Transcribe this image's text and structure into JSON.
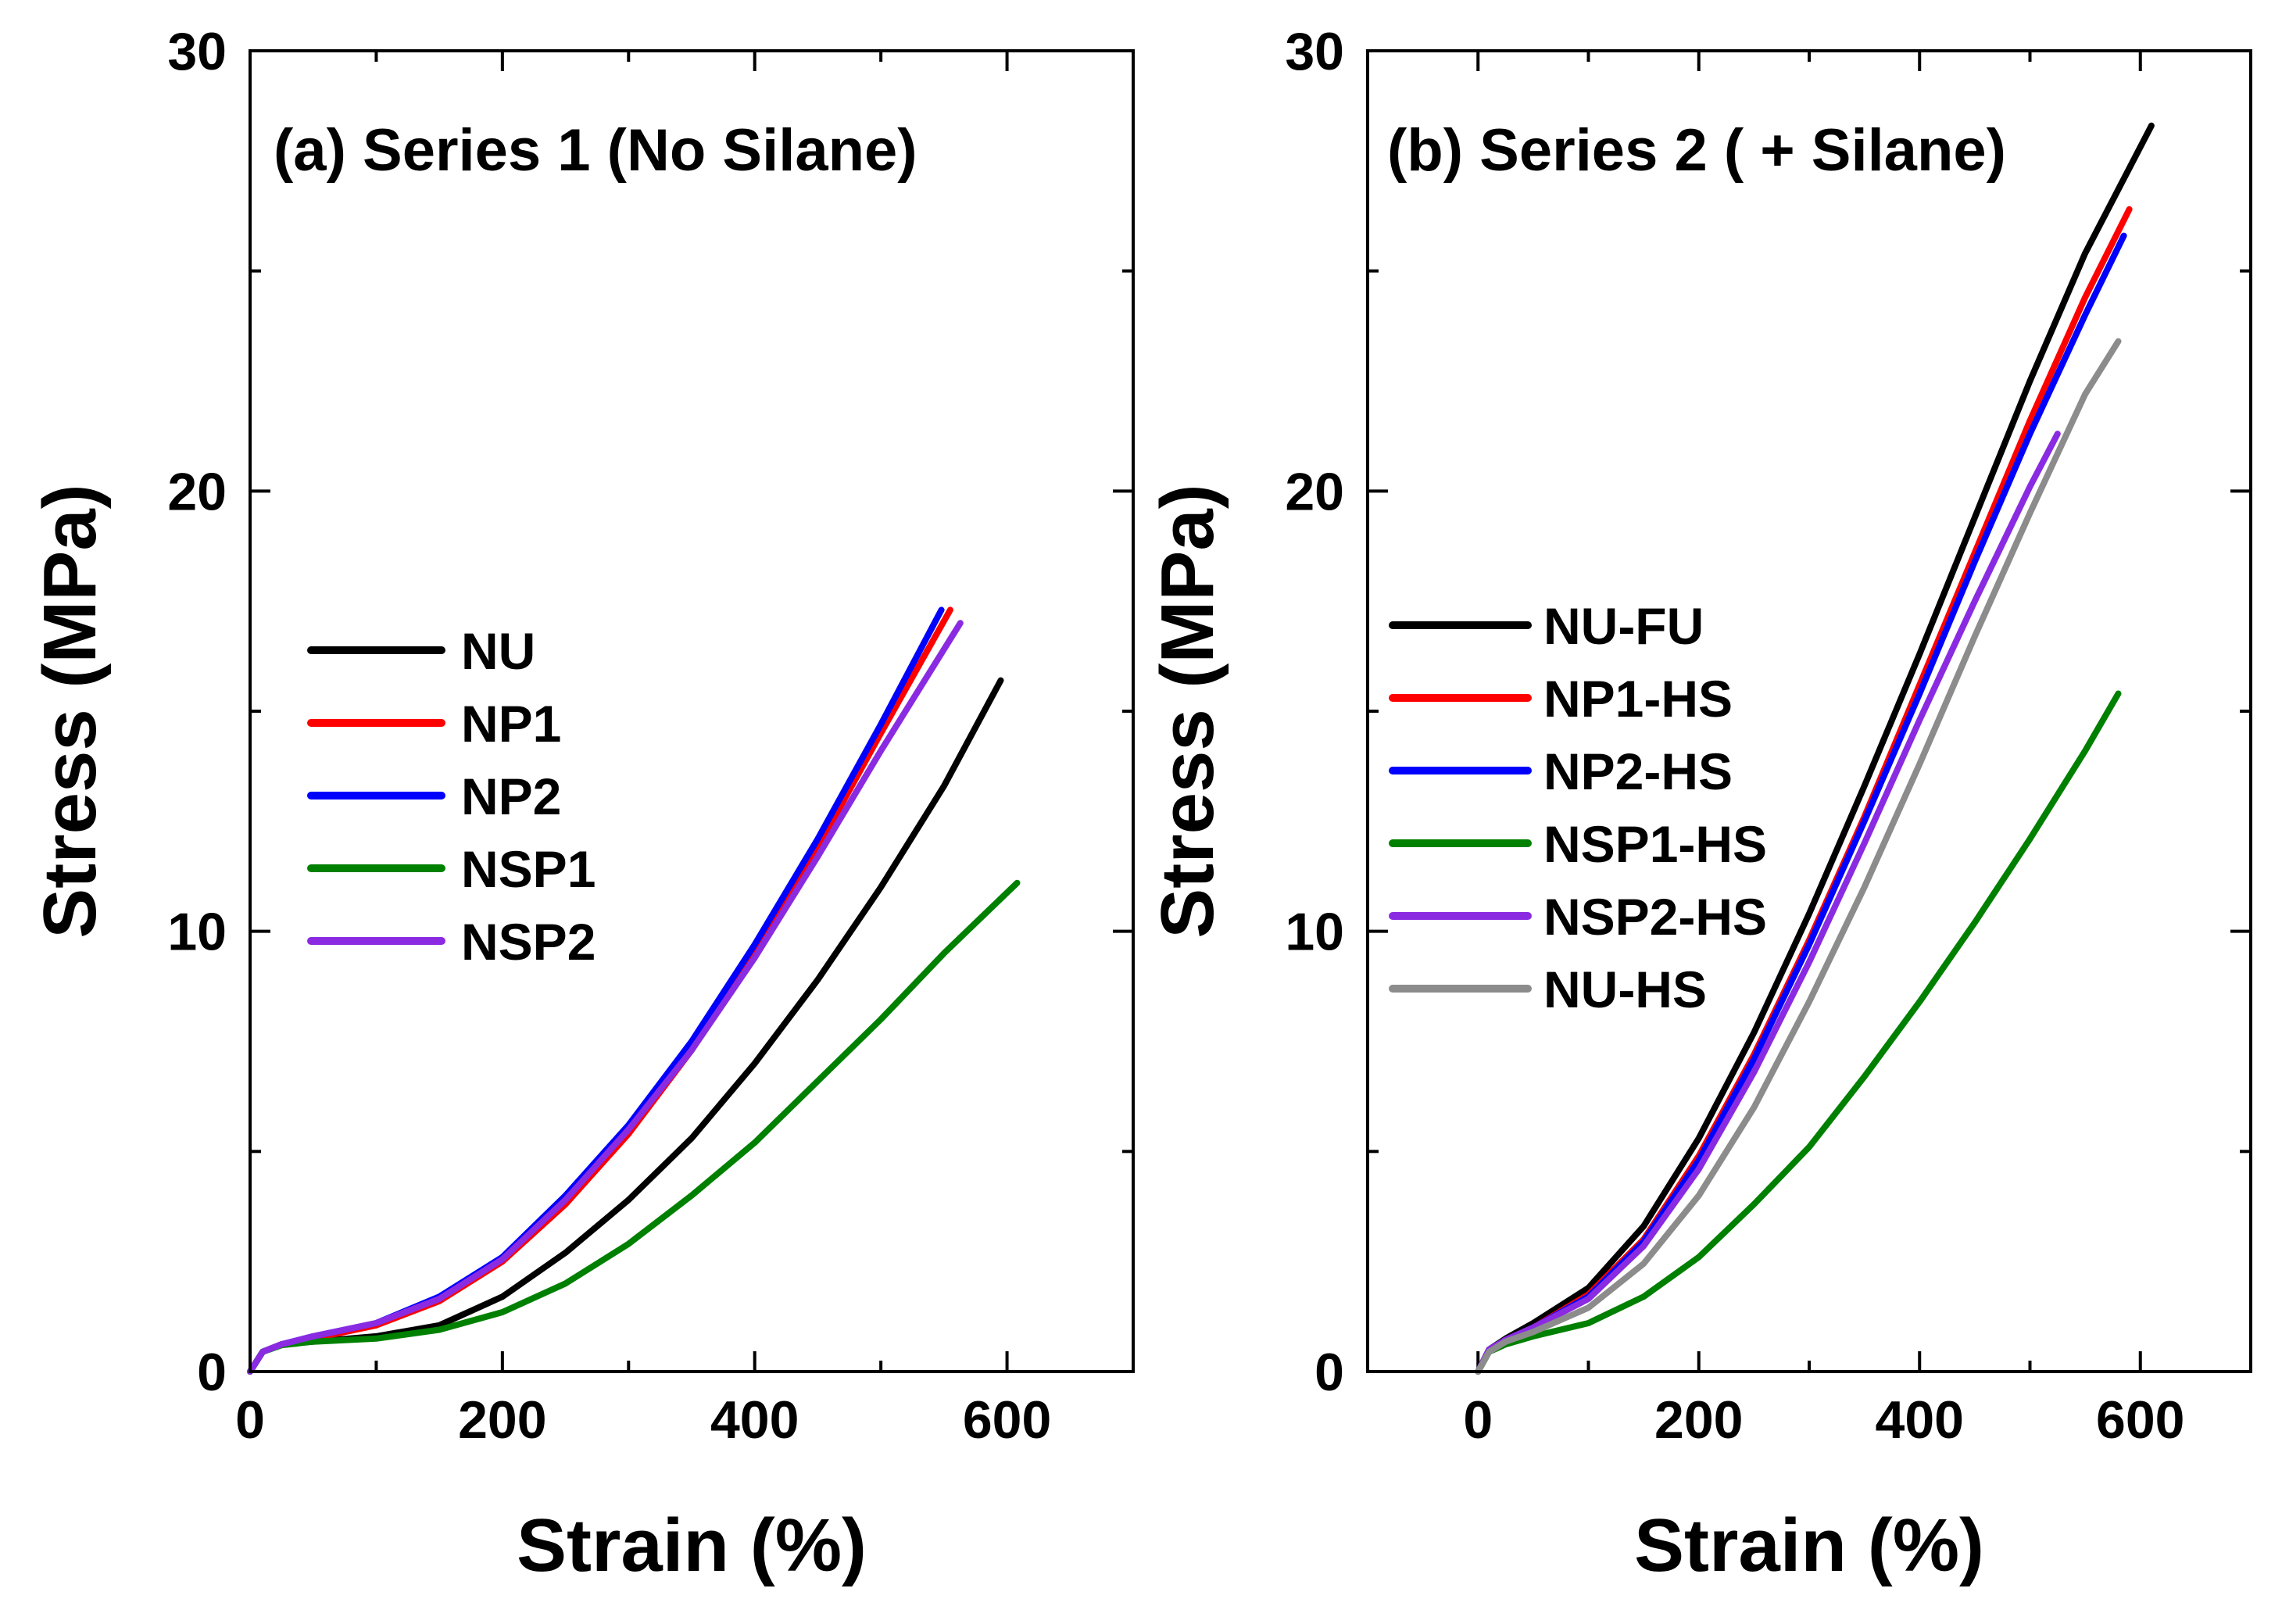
{
  "chart_data": [
    {
      "type": "line",
      "title": "(a) Series 1 (No Silane)",
      "xlabel": "Strain (%)",
      "ylabel": "Stress (MPa)",
      "xlim": [
        0,
        700
      ],
      "ylim": [
        0,
        30
      ],
      "xticks": [
        0,
        200,
        400,
        600
      ],
      "xtick_labels": [
        "0",
        "200",
        "400",
        "600"
      ],
      "yticks": [
        0,
        10,
        20,
        30
      ],
      "ytick_labels": [
        "0",
        "10",
        "20",
        "30"
      ],
      "legend_position": "middle-left",
      "series": [
        {
          "name": "NU",
          "color": "#000000",
          "points": [
            [
              0,
              0
            ],
            [
              10,
              0.45
            ],
            [
              25,
              0.62
            ],
            [
              50,
              0.68
            ],
            [
              100,
              0.8
            ],
            [
              150,
              1.05
            ],
            [
              200,
              1.7
            ],
            [
              250,
              2.7
            ],
            [
              300,
              3.9
            ],
            [
              350,
              5.3
            ],
            [
              400,
              7.0
            ],
            [
              450,
              8.9
            ],
            [
              500,
              11.0
            ],
            [
              550,
              13.3
            ],
            [
              595,
              15.7
            ]
          ]
        },
        {
          "name": "NP1",
          "color": "#ff0000",
          "points": [
            [
              0,
              0
            ],
            [
              10,
              0.45
            ],
            [
              25,
              0.62
            ],
            [
              50,
              0.75
            ],
            [
              100,
              1.05
            ],
            [
              150,
              1.6
            ],
            [
              200,
              2.5
            ],
            [
              250,
              3.8
            ],
            [
              300,
              5.4
            ],
            [
              350,
              7.3
            ],
            [
              400,
              9.5
            ],
            [
              450,
              11.9
            ],
            [
              500,
              14.5
            ],
            [
              555,
              17.3
            ]
          ]
        },
        {
          "name": "NP2",
          "color": "#0000ff",
          "points": [
            [
              0,
              0
            ],
            [
              10,
              0.45
            ],
            [
              25,
              0.62
            ],
            [
              50,
              0.8
            ],
            [
              100,
              1.1
            ],
            [
              150,
              1.7
            ],
            [
              200,
              2.6
            ],
            [
              250,
              4.0
            ],
            [
              300,
              5.6
            ],
            [
              350,
              7.5
            ],
            [
              400,
              9.7
            ],
            [
              450,
              12.1
            ],
            [
              500,
              14.7
            ],
            [
              548,
              17.3
            ]
          ]
        },
        {
          "name": "NSP1",
          "color": "#008000",
          "points": [
            [
              0,
              0
            ],
            [
              10,
              0.45
            ],
            [
              25,
              0.6
            ],
            [
              50,
              0.68
            ],
            [
              100,
              0.75
            ],
            [
              150,
              0.95
            ],
            [
              200,
              1.35
            ],
            [
              250,
              2.0
            ],
            [
              300,
              2.9
            ],
            [
              350,
              4.0
            ],
            [
              400,
              5.2
            ],
            [
              450,
              6.6
            ],
            [
              500,
              8.0
            ],
            [
              550,
              9.5
            ],
            [
              608,
              11.1
            ]
          ]
        },
        {
          "name": "NSP2",
          "color": "#8a2be2",
          "points": [
            [
              0,
              0
            ],
            [
              10,
              0.45
            ],
            [
              25,
              0.62
            ],
            [
              50,
              0.8
            ],
            [
              100,
              1.1
            ],
            [
              150,
              1.65
            ],
            [
              200,
              2.55
            ],
            [
              250,
              3.9
            ],
            [
              300,
              5.5
            ],
            [
              350,
              7.3
            ],
            [
              400,
              9.4
            ],
            [
              450,
              11.7
            ],
            [
              500,
              14.1
            ],
            [
              563,
              17.0
            ]
          ]
        }
      ]
    },
    {
      "type": "line",
      "title": "(b) Series 2 ( + Silane)",
      "xlabel": "Strain (%)",
      "ylabel": "Stress (MPa)",
      "xlim": [
        -100,
        700
      ],
      "ylim": [
        0,
        30
      ],
      "xticks": [
        0,
        200,
        400,
        600
      ],
      "xtick_labels": [
        "0",
        "200",
        "400",
        "600"
      ],
      "yticks": [
        0,
        10,
        20,
        30
      ],
      "ytick_labels": [
        "0",
        "10",
        "20",
        "30"
      ],
      "legend_position": "middle-left",
      "series": [
        {
          "name": "NU-FU",
          "color": "#000000",
          "points": [
            [
              0,
              0
            ],
            [
              10,
              0.5
            ],
            [
              25,
              0.75
            ],
            [
              50,
              1.1
            ],
            [
              100,
              1.9
            ],
            [
              150,
              3.3
            ],
            [
              200,
              5.3
            ],
            [
              250,
              7.7
            ],
            [
              300,
              10.4
            ],
            [
              350,
              13.3
            ],
            [
              400,
              16.3
            ],
            [
              450,
              19.4
            ],
            [
              500,
              22.5
            ],
            [
              550,
              25.4
            ],
            [
              610,
              28.3
            ]
          ]
        },
        {
          "name": "NP1-HS",
          "color": "#ff0000",
          "points": [
            [
              0,
              0
            ],
            [
              10,
              0.5
            ],
            [
              25,
              0.72
            ],
            [
              50,
              1.0
            ],
            [
              100,
              1.75
            ],
            [
              150,
              3.0
            ],
            [
              200,
              4.9
            ],
            [
              250,
              7.2
            ],
            [
              300,
              9.8
            ],
            [
              350,
              12.6
            ],
            [
              400,
              15.6
            ],
            [
              450,
              18.6
            ],
            [
              500,
              21.6
            ],
            [
              550,
              24.4
            ],
            [
              590,
              26.4
            ]
          ]
        },
        {
          "name": "NP2-HS",
          "color": "#0000ff",
          "points": [
            [
              0,
              0
            ],
            [
              10,
              0.5
            ],
            [
              25,
              0.72
            ],
            [
              50,
              1.0
            ],
            [
              100,
              1.7
            ],
            [
              150,
              2.95
            ],
            [
              200,
              4.8
            ],
            [
              250,
              7.1
            ],
            [
              300,
              9.7
            ],
            [
              350,
              12.5
            ],
            [
              400,
              15.4
            ],
            [
              450,
              18.4
            ],
            [
              500,
              21.3
            ],
            [
              550,
              24.0
            ],
            [
              585,
              25.8
            ]
          ]
        },
        {
          "name": "NSP1-HS",
          "color": "#008000",
          "points": [
            [
              0,
              0
            ],
            [
              10,
              0.45
            ],
            [
              25,
              0.62
            ],
            [
              50,
              0.8
            ],
            [
              100,
              1.1
            ],
            [
              150,
              1.7
            ],
            [
              200,
              2.6
            ],
            [
              250,
              3.8
            ],
            [
              300,
              5.1
            ],
            [
              350,
              6.7
            ],
            [
              400,
              8.4
            ],
            [
              450,
              10.2
            ],
            [
              500,
              12.1
            ],
            [
              550,
              14.1
            ],
            [
              580,
              15.4
            ]
          ]
        },
        {
          "name": "NSP2-HS",
          "color": "#8a2be2",
          "points": [
            [
              0,
              0
            ],
            [
              10,
              0.5
            ],
            [
              25,
              0.72
            ],
            [
              50,
              1.0
            ],
            [
              100,
              1.65
            ],
            [
              150,
              2.85
            ],
            [
              200,
              4.6
            ],
            [
              250,
              6.8
            ],
            [
              300,
              9.3
            ],
            [
              350,
              12.0
            ],
            [
              400,
              14.8
            ],
            [
              450,
              17.5
            ],
            [
              500,
              20.1
            ],
            [
              525,
              21.3
            ]
          ]
        },
        {
          "name": "NU-HS",
          "color": "#8c8c8c",
          "points": [
            [
              0,
              0
            ],
            [
              10,
              0.45
            ],
            [
              25,
              0.68
            ],
            [
              50,
              0.9
            ],
            [
              100,
              1.45
            ],
            [
              150,
              2.45
            ],
            [
              200,
              4.0
            ],
            [
              250,
              6.0
            ],
            [
              300,
              8.4
            ],
            [
              350,
              11.0
            ],
            [
              400,
              13.8
            ],
            [
              450,
              16.7
            ],
            [
              500,
              19.5
            ],
            [
              550,
              22.2
            ],
            [
              580,
              23.4
            ]
          ]
        }
      ]
    }
  ]
}
